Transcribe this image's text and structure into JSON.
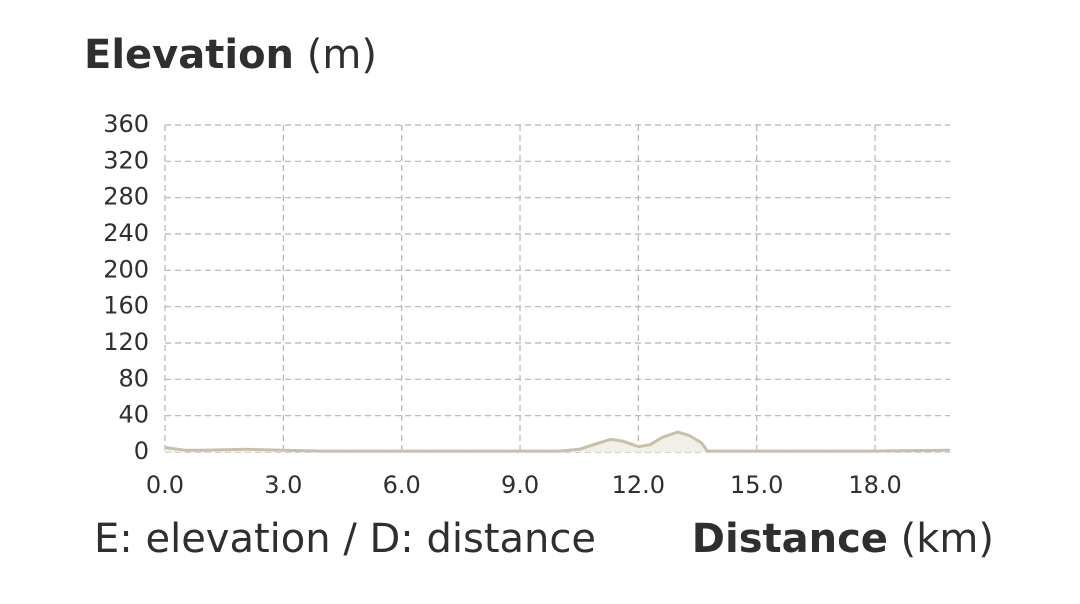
{
  "chart_data": {
    "type": "area",
    "title": "Elevation",
    "title_unit": "(m)",
    "note": "E: elevation / D: distance",
    "x_label": "Distance",
    "x_unit": "(km)",
    "x": [
      0,
      0.5,
      1,
      2,
      3,
      4,
      6,
      8,
      10,
      10.5,
      11,
      11.3,
      11.6,
      12,
      12.3,
      12.6,
      13,
      13.3,
      13.6,
      13.75,
      14,
      16,
      18,
      19.9
    ],
    "series": [
      {
        "name": "Elevation",
        "color": "#c9c0aa",
        "fill": "#f2efe8",
        "values": [
          5,
          2,
          2,
          3,
          2,
          1,
          1,
          1,
          1,
          3,
          10,
          14,
          12,
          6,
          8,
          16,
          22,
          18,
          10,
          1,
          1,
          1,
          1,
          2
        ]
      }
    ],
    "xlim": [
      0,
      19.9
    ],
    "ylim": [
      0,
      360
    ],
    "xticks": [
      {
        "value": 0,
        "label": "0.0"
      },
      {
        "value": 3,
        "label": "3.0"
      },
      {
        "value": 6,
        "label": "6.0"
      },
      {
        "value": 9,
        "label": "9.0"
      },
      {
        "value": 12,
        "label": "12.0"
      },
      {
        "value": 15,
        "label": "15.0"
      },
      {
        "value": 18,
        "label": "18.0"
      }
    ],
    "yticks": [
      0,
      40,
      80,
      120,
      160,
      200,
      240,
      280,
      320,
      360
    ],
    "grid": true
  }
}
